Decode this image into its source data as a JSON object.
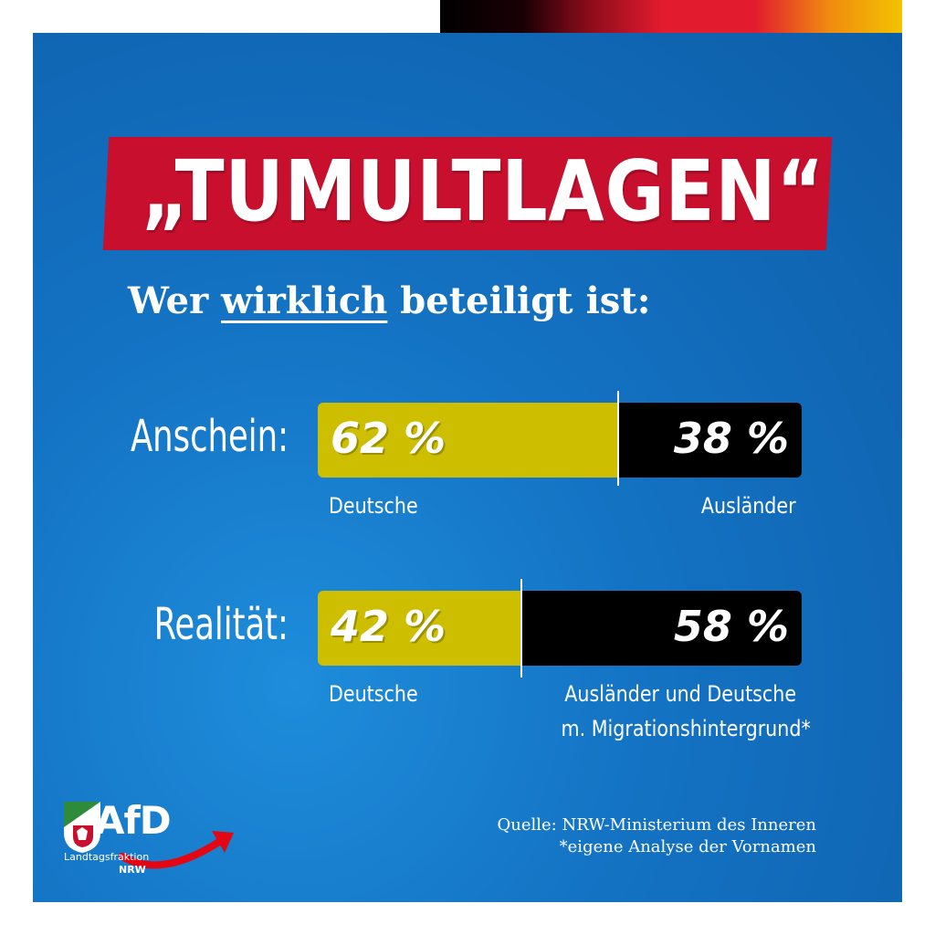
{
  "header": {
    "title": "„TUMULTLAGEN“",
    "subtitle_pre": "Wer ",
    "subtitle_ul": "wirklich",
    "subtitle_post": " beteiligt ist:"
  },
  "colors": {
    "german": "#cdbf00",
    "foreign": "#000000",
    "title_bg": "#c8102e",
    "background": "#1473c4"
  },
  "chart_data": {
    "type": "bar",
    "stacked": true,
    "categories": [
      "Anschein:",
      "Realität:"
    ],
    "series": [
      {
        "name": "Deutsche",
        "values": [
          62,
          42
        ],
        "labels": [
          "62 %",
          "42 %"
        ],
        "caption": [
          "Deutsche",
          "Deutsche"
        ]
      },
      {
        "name": "Ausländer",
        "values": [
          38,
          58
        ],
        "labels": [
          "38 %",
          "58 %"
        ],
        "caption": [
          "Ausländer",
          "Ausländer und Deutsche"
        ],
        "caption2": [
          "",
          "m. Migrationshintergrund*"
        ]
      }
    ],
    "xlim": [
      0,
      100
    ]
  },
  "footer": {
    "source": "Quelle: NRW-Ministerium des Inneren",
    "footnote": "*eigene Analyse der Vornamen"
  },
  "logo": {
    "wordmark": "AfD",
    "line1": "Landtagsfraktion",
    "line2": "NRW",
    "icon": "nrw-crest-icon"
  }
}
